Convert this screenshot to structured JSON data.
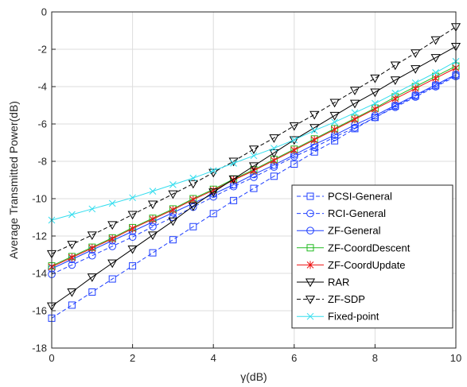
{
  "chart_data": {
    "type": "line",
    "title": "",
    "xlabel": "γ(dB)",
    "ylabel": "Average Transmitted Power(dB)",
    "xlim": [
      0,
      10
    ],
    "ylim": [
      -18,
      0
    ],
    "xticks": [
      0,
      2,
      4,
      6,
      8,
      10
    ],
    "yticks": [
      0,
      -2,
      -4,
      -6,
      -8,
      -10,
      -12,
      -14,
      -16,
      -18
    ],
    "grid": true,
    "legend_position": "center-right",
    "x": [
      0,
      0.5,
      1,
      1.5,
      2,
      2.5,
      3,
      3.5,
      4,
      4.5,
      5,
      5.5,
      6,
      6.5,
      7,
      7.5,
      8,
      8.5,
      9,
      9.5,
      10
    ],
    "series": [
      {
        "name": "PCSI-General",
        "color": "#1f3fff",
        "dash": "dashed",
        "marker": "square",
        "values": [
          -16.4,
          -15.7,
          -15.0,
          -14.3,
          -13.6,
          -12.9,
          -12.2,
          -11.5,
          -10.8,
          -10.1,
          -9.45,
          -8.8,
          -8.15,
          -7.5,
          -6.9,
          -6.25,
          -5.65,
          -5.05,
          -4.5,
          -3.95,
          -3.4
        ]
      },
      {
        "name": "RCI-General",
        "color": "#1f3fff",
        "dash": "dashed",
        "marker": "circle",
        "values": [
          -14.05,
          -13.55,
          -13.05,
          -12.55,
          -12.05,
          -11.5,
          -11.0,
          -10.45,
          -9.9,
          -9.35,
          -8.85,
          -8.3,
          -7.75,
          -7.25,
          -6.7,
          -6.2,
          -5.65,
          -5.1,
          -4.55,
          -4.0,
          -3.45
        ]
      },
      {
        "name": "ZF-General",
        "color": "#1f3fff",
        "dash": "solid",
        "marker": "circle",
        "values": [
          -13.75,
          -13.25,
          -12.75,
          -12.25,
          -11.75,
          -11.25,
          -10.75,
          -10.25,
          -9.75,
          -9.25,
          -8.7,
          -8.2,
          -7.65,
          -7.1,
          -6.6,
          -6.05,
          -5.55,
          -5.0,
          -4.45,
          -3.9,
          -3.35
        ]
      },
      {
        "name": "ZF-CoordDescent",
        "color": "#22bb22",
        "dash": "solid",
        "marker": "square",
        "values": [
          -13.6,
          -13.1,
          -12.6,
          -12.1,
          -11.55,
          -11.05,
          -10.55,
          -10.0,
          -9.5,
          -8.95,
          -8.45,
          -7.9,
          -7.35,
          -6.8,
          -6.25,
          -5.7,
          -5.15,
          -4.55,
          -4.0,
          -3.45,
          -2.9
        ]
      },
      {
        "name": "ZF-CoordUpdate",
        "color": "#ee1111",
        "dash": "solid",
        "marker": "star",
        "values": [
          -13.65,
          -13.15,
          -12.65,
          -12.15,
          -11.6,
          -11.1,
          -10.6,
          -10.05,
          -9.55,
          -9.0,
          -8.5,
          -7.95,
          -7.4,
          -6.85,
          -6.3,
          -5.75,
          -5.2,
          -4.65,
          -4.1,
          -3.55,
          -3.0
        ]
      },
      {
        "name": "RAR",
        "color": "#000000",
        "dash": "solid",
        "marker": "triangle-down",
        "values": [
          -15.75,
          -15.0,
          -14.2,
          -13.45,
          -12.7,
          -11.95,
          -11.2,
          -10.4,
          -9.65,
          -8.95,
          -8.25,
          -7.55,
          -6.85,
          -6.2,
          -5.55,
          -4.9,
          -4.3,
          -3.65,
          -3.05,
          -2.45,
          -1.85
        ]
      },
      {
        "name": "ZF-SDP",
        "color": "#000000",
        "dash": "dashed",
        "marker": "triangle-down",
        "values": [
          -12.95,
          -12.45,
          -11.95,
          -11.4,
          -10.85,
          -10.3,
          -9.75,
          -9.2,
          -8.6,
          -8.0,
          -7.35,
          -6.75,
          -6.1,
          -5.5,
          -4.85,
          -4.2,
          -3.55,
          -2.85,
          -2.2,
          -1.5,
          -0.8
        ]
      },
      {
        "name": "Fixed-point",
        "color": "#33ddee",
        "dash": "solid",
        "marker": "x",
        "values": [
          -11.15,
          -10.85,
          -10.55,
          -10.25,
          -9.95,
          -9.6,
          -9.25,
          -8.9,
          -8.5,
          -8.1,
          -7.7,
          -7.3,
          -6.85,
          -6.35,
          -5.9,
          -5.4,
          -4.9,
          -4.35,
          -3.8,
          -3.25,
          -2.65
        ]
      }
    ]
  }
}
